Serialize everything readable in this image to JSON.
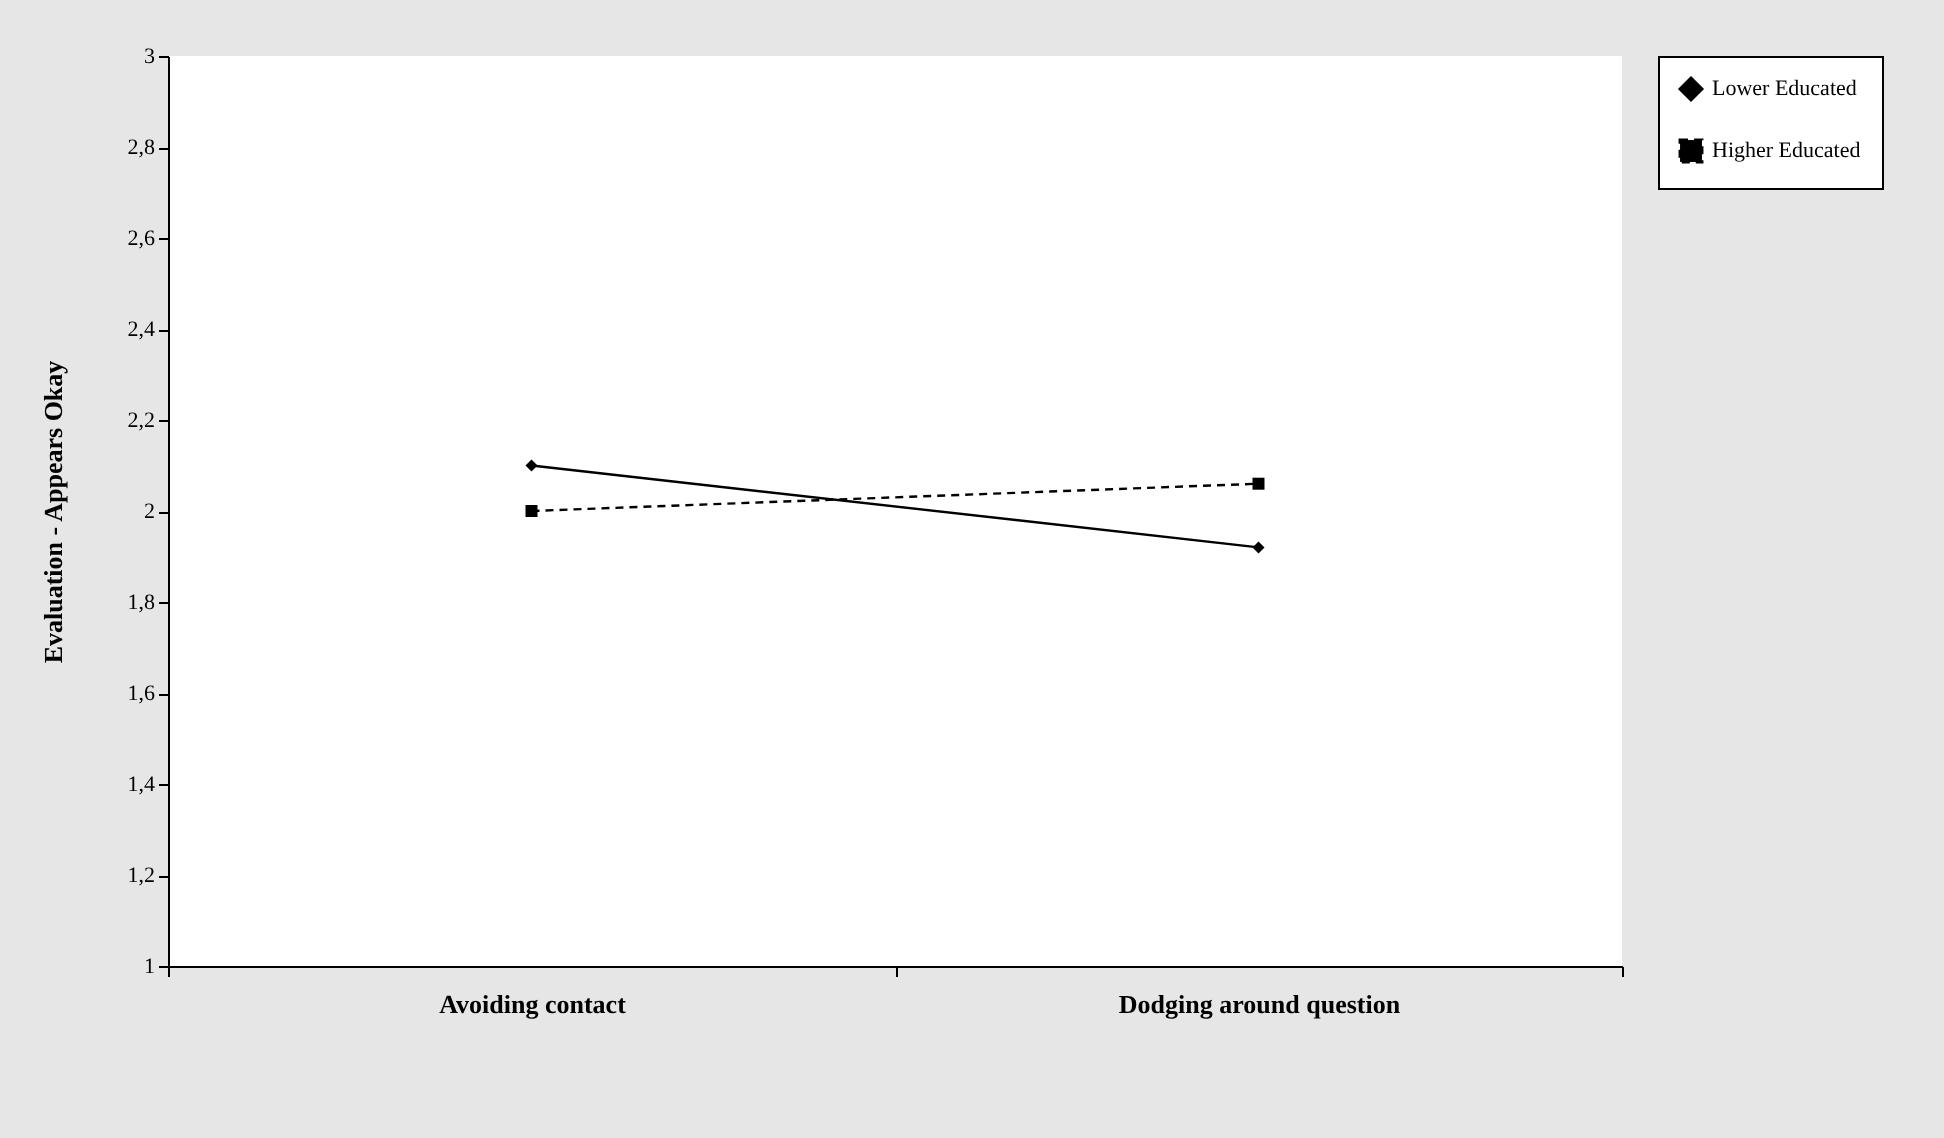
{
  "chart_data": {
    "type": "line",
    "ylabel": "Evaluation  -  Appears Okay",
    "categories": [
      "Avoiding contact",
      "Dodging around question"
    ],
    "series": [
      {
        "name": "Lower Educated",
        "color": "#000000",
        "values": [
          2.1,
          1.92
        ],
        "marker": "diamond",
        "line_style": "solid"
      },
      {
        "name": "Higher Educated",
        "color": "#000000",
        "values": [
          2.0,
          2.06
        ],
        "marker": "square",
        "line_style": "dashed"
      }
    ],
    "ylim": [
      1,
      3
    ],
    "yticks": [
      1,
      {
        "value": 1.2,
        "label": "1,2"
      },
      {
        "value": 1.4,
        "label": "1,4"
      },
      {
        "value": 1.6,
        "label": "1,6"
      },
      {
        "value": 1.8,
        "label": "1,8"
      },
      2,
      {
        "value": 2.2,
        "label": "2,2"
      },
      {
        "value": 2.4,
        "label": "2,4"
      },
      {
        "value": 2.6,
        "label": "2,6"
      },
      {
        "value": 2.8,
        "label": "2,8"
      },
      3
    ],
    "grid": false,
    "legend": "right"
  }
}
